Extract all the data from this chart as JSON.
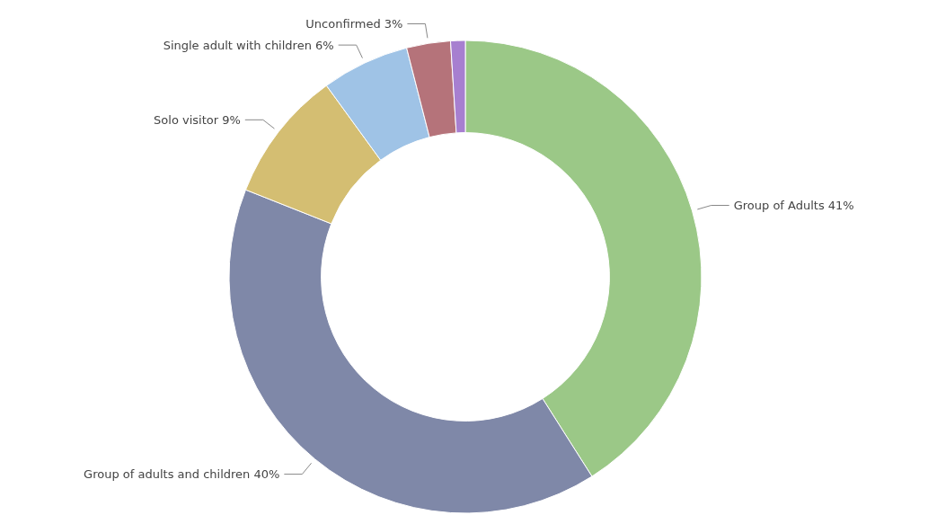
{
  "chart_data": {
    "type": "donut",
    "categories": [
      "Group of Adults",
      "Group of adults and children",
      "Solo visitor",
      "Single adult with children",
      "Unconfirmed",
      null
    ],
    "values": [
      41,
      40,
      9,
      6,
      3,
      1
    ],
    "value_labels": [
      "41%",
      "40%",
      "9%",
      "6%",
      "3%",
      null
    ],
    "colors": [
      "#9bc887",
      "#7f88a8",
      "#d4be72",
      "#9fc3e6",
      "#b5737a",
      "#a77fd0"
    ]
  }
}
